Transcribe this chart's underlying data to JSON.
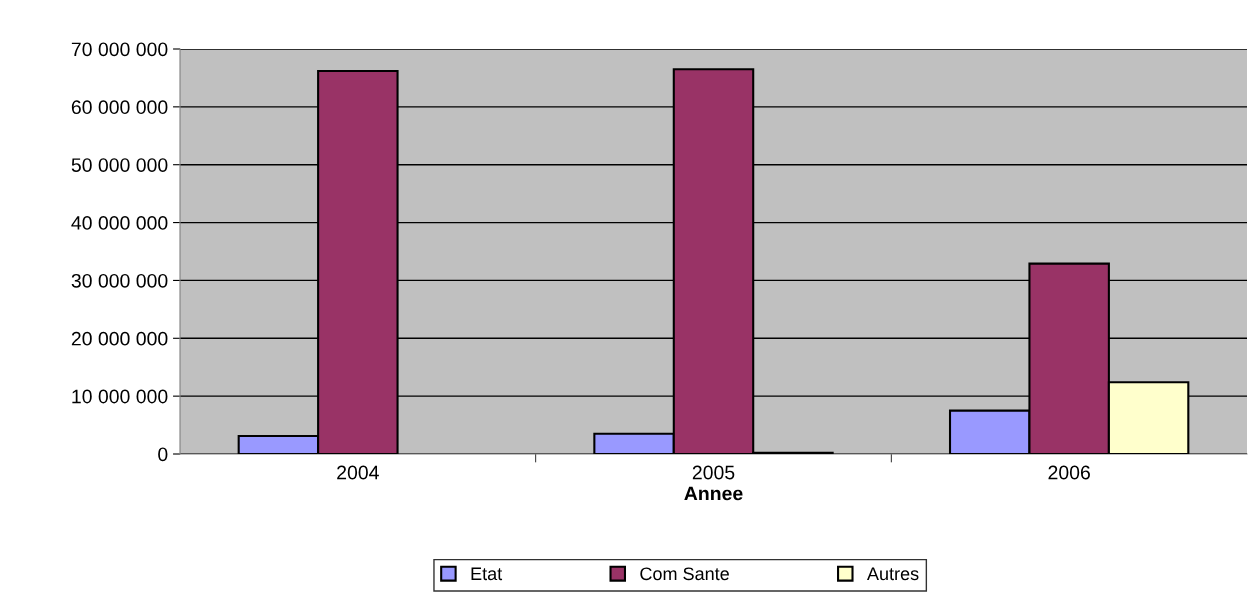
{
  "chart_data": {
    "type": "bar",
    "xlabel": "Annee",
    "categories": [
      "2004",
      "2005",
      "2006"
    ],
    "series": [
      {
        "name": "Etat",
        "color": "#9999ff",
        "values": [
          3100000,
          3500000,
          7500000
        ]
      },
      {
        "name": "Com Sante",
        "color": "#993366",
        "values": [
          66200000,
          66500000,
          32900000
        ]
      },
      {
        "name": "Autres",
        "color": "#ffffcc",
        "values": [
          null,
          200000,
          12400000
        ]
      }
    ],
    "ylim": [
      0,
      70000000
    ],
    "yticks": [
      0,
      {
        "value": 10000000,
        "label": "10 000 000"
      },
      {
        "value": 20000000,
        "label": "20 000 000"
      },
      {
        "value": 30000000,
        "label": "30 000 000"
      },
      {
        "value": 40000000,
        "label": "40 000 000"
      },
      {
        "value": 50000000,
        "label": "50 000 000"
      },
      {
        "value": 60000000,
        "label": "60 000 000"
      },
      {
        "value": 70000000,
        "label": "70 000 000"
      }
    ],
    "grid": "y",
    "legend": "bottom"
  }
}
